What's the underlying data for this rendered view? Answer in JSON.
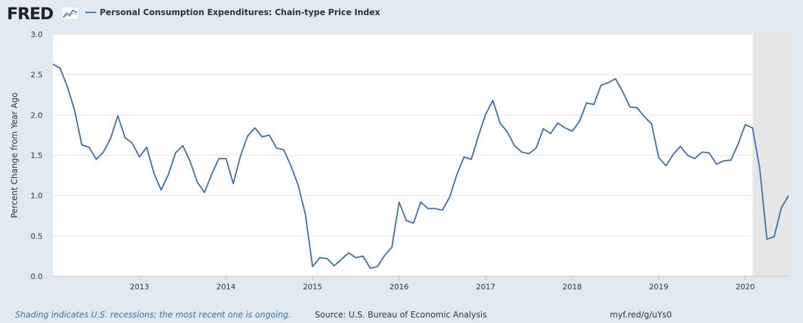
{
  "header": {
    "logo_text": "FRED",
    "logo_icon": "chart-line-icon",
    "legend_label": "Personal Consumption Expenditures: Chain-type Price Index"
  },
  "footer": {
    "recession_note": "Shading indicates U.S. recessions; the most recent one is ongoing.",
    "source": "Source: U.S. Bureau of Economic Analysis",
    "url": "myf.red/g/uYs0"
  },
  "colors": {
    "line": "#4572a7",
    "recession": "#e6e6e6",
    "plot_bg": "#ffffff",
    "page_bg": "#e1e9f0",
    "grid": "#e6e6e6"
  },
  "chart_data": {
    "type": "line",
    "title": "",
    "xlabel": "",
    "ylabel": "Percent Change from Year Ago",
    "ylim": [
      0,
      3.0
    ],
    "xlim": [
      "2012-01",
      "2020-07"
    ],
    "yticks": [
      "0.0",
      "0.5",
      "1.0",
      "1.5",
      "2.0",
      "2.5",
      "3.0"
    ],
    "xticks": [
      "2013",
      "2014",
      "2015",
      "2016",
      "2017",
      "2018",
      "2019",
      "2020"
    ],
    "recession": {
      "start": "2020-02",
      "end": "2020-07"
    },
    "series": [
      {
        "name": "Personal Consumption Expenditures: Chain-type Price Index",
        "start": "2012-01",
        "frequency": "monthly",
        "values": [
          2.63,
          2.58,
          2.35,
          2.06,
          1.63,
          1.6,
          1.45,
          1.54,
          1.71,
          1.99,
          1.72,
          1.65,
          1.48,
          1.6,
          1.28,
          1.07,
          1.26,
          1.53,
          1.62,
          1.43,
          1.17,
          1.04,
          1.26,
          1.46,
          1.46,
          1.15,
          1.49,
          1.74,
          1.84,
          1.73,
          1.75,
          1.59,
          1.57,
          1.37,
          1.13,
          0.77,
          0.12,
          0.23,
          0.22,
          0.13,
          0.21,
          0.29,
          0.23,
          0.25,
          0.1,
          0.12,
          0.26,
          0.36,
          0.92,
          0.69,
          0.66,
          0.92,
          0.84,
          0.84,
          0.82,
          0.98,
          1.26,
          1.48,
          1.45,
          1.74,
          2.01,
          2.18,
          1.9,
          1.79,
          1.62,
          1.54,
          1.52,
          1.59,
          1.83,
          1.77,
          1.9,
          1.84,
          1.8,
          1.92,
          2.15,
          2.13,
          2.37,
          2.4,
          2.45,
          2.29,
          2.1,
          2.09,
          1.98,
          1.89,
          1.47,
          1.37,
          1.51,
          1.61,
          1.5,
          1.46,
          1.54,
          1.53,
          1.39,
          1.43,
          1.44,
          1.64,
          1.88,
          1.84,
          1.34,
          0.46,
          0.49,
          0.85,
          1.0
        ]
      }
    ]
  }
}
